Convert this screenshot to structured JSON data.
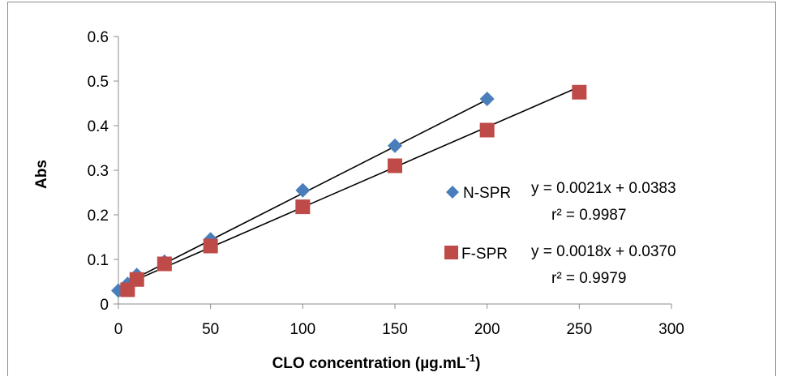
{
  "chart_data": {
    "type": "scatter",
    "title": "",
    "xlabel": "CLO concentration (µg.mL",
    "xlabel_sup": "-1",
    "xlabel_end": ")",
    "ylabel": "Abs",
    "xlim": [
      0,
      300
    ],
    "ylim": [
      0,
      0.6
    ],
    "xticks": [
      "0",
      "50",
      "100",
      "150",
      "200",
      "250",
      "300"
    ],
    "yticks": [
      "0",
      "0.1",
      "0.2",
      "0.3",
      "0.4",
      "0.5",
      "0.6"
    ],
    "grid": false,
    "legend_position": "right",
    "series": [
      {
        "name": "N-SPR",
        "marker": "diamond",
        "color": "#4a7ebb",
        "x": [
          0,
          5,
          10,
          25,
          50,
          100,
          150,
          200
        ],
        "y": [
          0.03,
          0.045,
          0.065,
          0.095,
          0.145,
          0.255,
          0.355,
          0.46
        ],
        "trendline": {
          "slope": 0.0021,
          "intercept": 0.0383,
          "x_range": [
            5,
            200
          ]
        },
        "equation": "y = 0.0021x + 0.0383",
        "r2": "r² = 0.9987"
      },
      {
        "name": "F-SPR",
        "marker": "square",
        "color": "#be4b48",
        "x": [
          5,
          10,
          25,
          50,
          100,
          150,
          200,
          250
        ],
        "y": [
          0.032,
          0.055,
          0.09,
          0.13,
          0.218,
          0.31,
          0.39,
          0.475
        ],
        "trendline": {
          "slope": 0.0018,
          "intercept": 0.037,
          "x_range": [
            5,
            250
          ]
        },
        "equation": "y = 0.0018x + 0.0370",
        "r2": "r² = 0.9979"
      }
    ]
  }
}
